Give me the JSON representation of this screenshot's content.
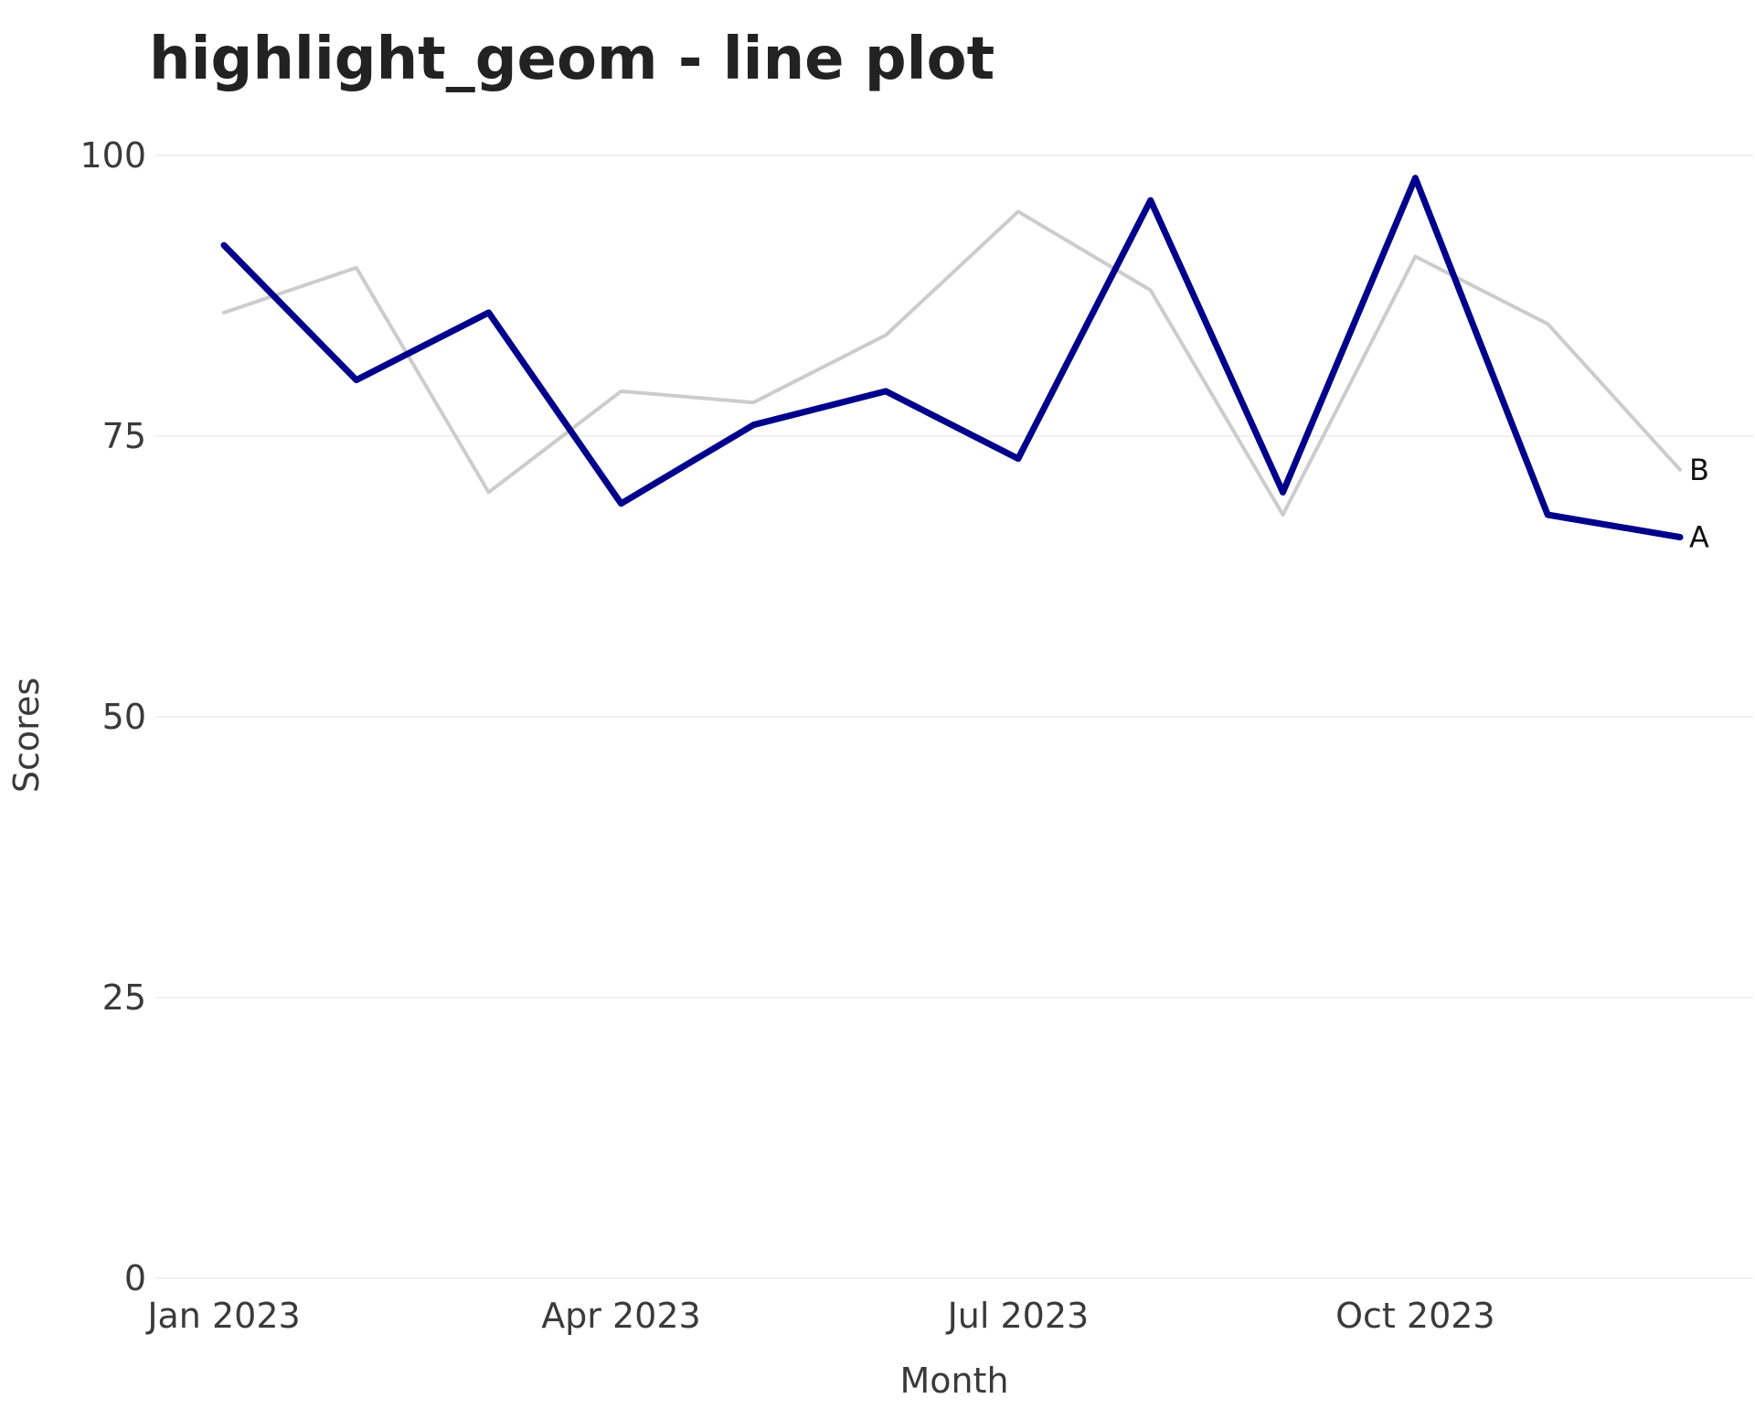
{
  "chart_data": {
    "type": "line",
    "title": "highlight_geom - line plot",
    "xlabel": "Month",
    "ylabel": "Scores",
    "x": [
      "2023-01",
      "2023-02",
      "2023-03",
      "2023-04",
      "2023-05",
      "2023-06",
      "2023-07",
      "2023-08",
      "2023-09",
      "2023-10",
      "2023-11",
      "2023-12"
    ],
    "x_ticks": [
      {
        "x": "2023-01",
        "label": "Jan 2023"
      },
      {
        "x": "2023-04",
        "label": "Apr 2023"
      },
      {
        "x": "2023-07",
        "label": "Jul 2023"
      },
      {
        "x": "2023-10",
        "label": "Oct 2023"
      }
    ],
    "y_ticks": [
      0,
      25,
      50,
      75,
      100
    ],
    "ylim": [
      0,
      100
    ],
    "grid": true,
    "legend": "none (direct end labels)",
    "series": [
      {
        "name": "B",
        "color": "#cccccc",
        "highlighted": false,
        "values": [
          86,
          90,
          70,
          79,
          78,
          84,
          95,
          88,
          68,
          91,
          85,
          72
        ]
      },
      {
        "name": "A",
        "color": "#00008b",
        "highlighted": true,
        "values": [
          92,
          80,
          86,
          69,
          76,
          79,
          73,
          96,
          70,
          98,
          68,
          66
        ]
      }
    ]
  }
}
